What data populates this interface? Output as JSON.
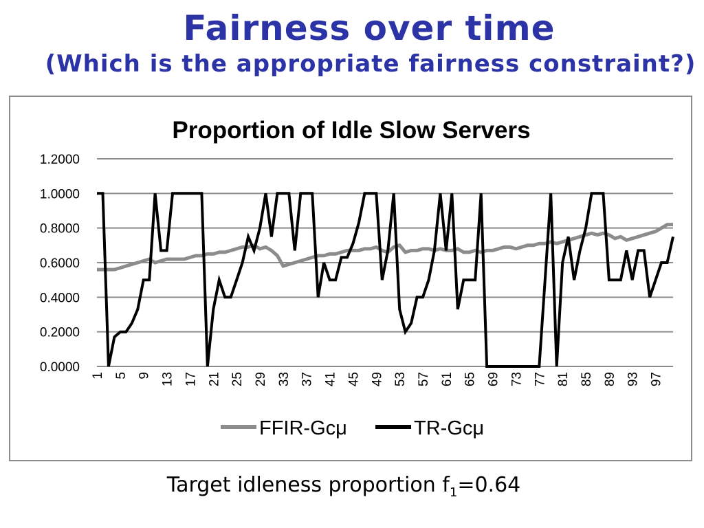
{
  "slide": {
    "title": "Fairness over time",
    "subtitle": "(Which is the appropriate fairness constraint?)",
    "footer_prefix": "Target idleness proportion f",
    "footer_sub": "1",
    "footer_suffix": "=0.64"
  },
  "colors": {
    "title": "#2b33a6",
    "series_ffir": "#8c8c8c",
    "series_tr": "#000000",
    "grid": "#8c8c8c"
  },
  "chart_data": {
    "type": "line",
    "title": "Proportion of Idle Slow Servers",
    "xlabel": "",
    "ylabel": "",
    "ylim": [
      0,
      1.2
    ],
    "y_ticks": [
      "0.0000",
      "0.2000",
      "0.4000",
      "0.6000",
      "0.8000",
      "1.0000",
      "1.2000"
    ],
    "x_tick_labels": [
      "1",
      "5",
      "9",
      "13",
      "17",
      "21",
      "25",
      "29",
      "33",
      "37",
      "41",
      "45",
      "49",
      "53",
      "57",
      "61",
      "65",
      "69",
      "73",
      "77",
      "81",
      "85",
      "89",
      "93",
      "97"
    ],
    "x": [
      1,
      2,
      3,
      4,
      5,
      6,
      7,
      8,
      9,
      10,
      11,
      12,
      13,
      14,
      15,
      16,
      17,
      18,
      19,
      20,
      21,
      22,
      23,
      24,
      25,
      26,
      27,
      28,
      29,
      30,
      31,
      32,
      33,
      34,
      35,
      36,
      37,
      38,
      39,
      40,
      41,
      42,
      43,
      44,
      45,
      46,
      47,
      48,
      49,
      50,
      51,
      52,
      53,
      54,
      55,
      56,
      57,
      58,
      59,
      60,
      61,
      62,
      63,
      64,
      65,
      66,
      67,
      68,
      69,
      70,
      71,
      72,
      73,
      74,
      75,
      76,
      77,
      78,
      79,
      80,
      81,
      82,
      83,
      84,
      85,
      86,
      87,
      88,
      89,
      90,
      91,
      92,
      93,
      94,
      95,
      96,
      97,
      98,
      99,
      100
    ],
    "grid": true,
    "legend_position": "bottom",
    "series": [
      {
        "name": "FFIR-Gcμ",
        "values": [
          0.56,
          0.56,
          0.56,
          0.56,
          0.57,
          0.58,
          0.59,
          0.6,
          0.61,
          0.62,
          0.6,
          0.61,
          0.62,
          0.62,
          0.62,
          0.62,
          0.63,
          0.64,
          0.64,
          0.65,
          0.65,
          0.66,
          0.66,
          0.67,
          0.68,
          0.69,
          0.69,
          0.7,
          0.68,
          0.69,
          0.67,
          0.64,
          0.58,
          0.59,
          0.6,
          0.61,
          0.62,
          0.63,
          0.64,
          0.64,
          0.65,
          0.65,
          0.66,
          0.67,
          0.67,
          0.67,
          0.68,
          0.68,
          0.69,
          0.67,
          0.66,
          0.69,
          0.7,
          0.66,
          0.67,
          0.67,
          0.68,
          0.68,
          0.67,
          0.68,
          0.67,
          0.67,
          0.68,
          0.66,
          0.66,
          0.67,
          0.66,
          0.67,
          0.67,
          0.68,
          0.69,
          0.69,
          0.68,
          0.69,
          0.7,
          0.7,
          0.71,
          0.71,
          0.72,
          0.71,
          0.72,
          0.73,
          0.74,
          0.75,
          0.76,
          0.77,
          0.76,
          0.77,
          0.76,
          0.74,
          0.75,
          0.73,
          0.74,
          0.75,
          0.76,
          0.77,
          0.78,
          0.8,
          0.82,
          0.82
        ]
      },
      {
        "name": "TR-Gcμ",
        "values": [
          1.0,
          1.0,
          0.0,
          0.17,
          0.2,
          0.2,
          0.25,
          0.33,
          0.5,
          0.5,
          1.0,
          0.67,
          0.67,
          1.0,
          1.0,
          1.0,
          1.0,
          1.0,
          1.0,
          0.0,
          0.33,
          0.5,
          0.4,
          0.4,
          0.5,
          0.6,
          0.75,
          0.67,
          0.8,
          1.0,
          0.75,
          1.0,
          1.0,
          1.0,
          0.67,
          1.0,
          1.0,
          1.0,
          0.4,
          0.6,
          0.5,
          0.5,
          0.63,
          0.63,
          0.71,
          0.83,
          1.0,
          1.0,
          1.0,
          0.5,
          0.67,
          1.0,
          0.33,
          0.2,
          0.25,
          0.4,
          0.4,
          0.5,
          0.67,
          1.0,
          0.67,
          1.0,
          0.33,
          0.5,
          0.5,
          0.5,
          1.0,
          0.0,
          0.0,
          0.0,
          0.0,
          0.0,
          0.0,
          0.0,
          0.0,
          0.0,
          0.0,
          0.5,
          1.0,
          0.0,
          0.6,
          0.75,
          0.5,
          0.67,
          0.8,
          1.0,
          1.0,
          1.0,
          0.5,
          0.5,
          0.5,
          0.67,
          0.5,
          0.67,
          0.67,
          0.4,
          0.5,
          0.6,
          0.6,
          0.75
        ]
      }
    ]
  }
}
